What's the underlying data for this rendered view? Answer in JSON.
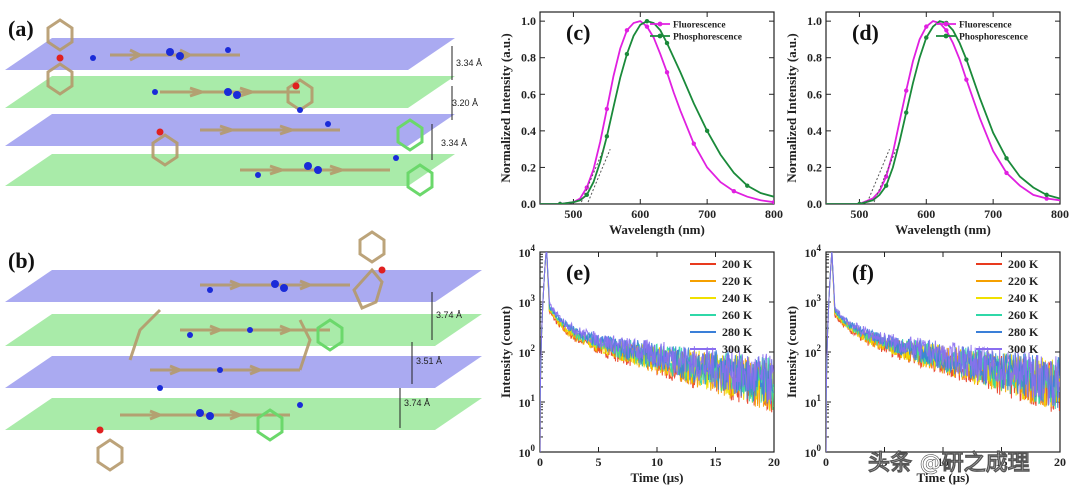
{
  "panels": {
    "a": {
      "label": "(a)",
      "distances": [
        "3.34 Å",
        "3.20 Å",
        "3.34 Å"
      ]
    },
    "b": {
      "label": "(b)",
      "distances": [
        "3.74 Å",
        "3.51 Å",
        "3.74 Å"
      ]
    }
  },
  "chart_data": [
    {
      "id": "c",
      "label": "(c)",
      "type": "line",
      "xlabel": "Wavelength (nm)",
      "ylabel": "Normalized Intensity (a.u.)",
      "xlim": [
        450,
        800
      ],
      "ylim": [
        0,
        1.05
      ],
      "xticks": [
        500,
        600,
        700,
        800
      ],
      "xticklabels": [
        "500",
        "600",
        "700",
        "800"
      ],
      "yticks": [
        0,
        0.2,
        0.4,
        0.6,
        0.8,
        1.0
      ],
      "yticklabels": [
        "0.0",
        "0.2",
        "0.4",
        "0.6",
        "0.8",
        "1.0"
      ],
      "series": [
        {
          "name": "Fluorescence",
          "color": "#e020e0",
          "x": [
            450,
            480,
            500,
            510,
            520,
            530,
            540,
            550,
            560,
            570,
            580,
            590,
            600,
            610,
            620,
            630,
            640,
            650,
            660,
            680,
            700,
            720,
            740,
            760,
            780,
            800
          ],
          "y": [
            0,
            0,
            0.01,
            0.03,
            0.09,
            0.19,
            0.34,
            0.52,
            0.7,
            0.85,
            0.95,
            0.99,
            1.0,
            0.97,
            0.91,
            0.82,
            0.72,
            0.61,
            0.51,
            0.33,
            0.2,
            0.12,
            0.07,
            0.04,
            0.02,
            0.01
          ]
        },
        {
          "name": "Phosphorescence",
          "color": "#1a8a3a",
          "x": [
            450,
            480,
            500,
            510,
            520,
            530,
            540,
            550,
            560,
            570,
            580,
            590,
            600,
            610,
            620,
            630,
            640,
            660,
            680,
            700,
            720,
            740,
            760,
            780,
            800
          ],
          "y": [
            0,
            0,
            0.01,
            0.02,
            0.05,
            0.12,
            0.23,
            0.37,
            0.53,
            0.69,
            0.82,
            0.92,
            0.98,
            1.0,
            0.99,
            0.95,
            0.88,
            0.72,
            0.55,
            0.4,
            0.27,
            0.17,
            0.1,
            0.06,
            0.04
          ]
        }
      ],
      "legend": [
        "Fluorescence",
        "Phosphorescence"
      ]
    },
    {
      "id": "d",
      "label": "(d)",
      "type": "line",
      "xlabel": "Wavelength (nm)",
      "ylabel": "Normalized Intensity (a.u.)",
      "xlim": [
        450,
        800
      ],
      "ylim": [
        0,
        1.05
      ],
      "xticks": [
        500,
        600,
        700,
        800
      ],
      "xticklabels": [
        "500",
        "600",
        "700",
        "800"
      ],
      "yticks": [
        0,
        0.2,
        0.4,
        0.6,
        0.8,
        1.0
      ],
      "yticklabels": [
        "0.0",
        "0.2",
        "0.4",
        "0.6",
        "0.8",
        "1.0"
      ],
      "series": [
        {
          "name": "Fluorescence",
          "color": "#e020e0",
          "x": [
            450,
            500,
            520,
            530,
            540,
            550,
            560,
            570,
            580,
            590,
            600,
            610,
            620,
            630,
            640,
            650,
            660,
            680,
            700,
            720,
            740,
            760,
            780,
            800
          ],
          "y": [
            0,
            0,
            0.03,
            0.07,
            0.15,
            0.28,
            0.45,
            0.62,
            0.78,
            0.9,
            0.97,
            1.0,
            0.99,
            0.95,
            0.88,
            0.79,
            0.68,
            0.47,
            0.29,
            0.17,
            0.1,
            0.05,
            0.03,
            0.02
          ]
        },
        {
          "name": "Phosphorescence",
          "color": "#1a8a3a",
          "x": [
            450,
            500,
            520,
            530,
            540,
            550,
            560,
            570,
            580,
            590,
            600,
            610,
            620,
            630,
            640,
            650,
            660,
            680,
            700,
            720,
            740,
            760,
            780,
            800
          ],
          "y": [
            0,
            0,
            0.02,
            0.05,
            0.1,
            0.2,
            0.34,
            0.5,
            0.66,
            0.8,
            0.91,
            0.97,
            1.0,
            0.99,
            0.95,
            0.88,
            0.79,
            0.58,
            0.39,
            0.25,
            0.15,
            0.09,
            0.05,
            0.03
          ]
        }
      ],
      "legend": [
        "Fluorescence",
        "Phosphorescence"
      ]
    },
    {
      "id": "e",
      "label": "(e)",
      "type": "line",
      "xlabel": "Time (μs)",
      "ylabel": "Intensity (count)",
      "xlim": [
        0,
        20
      ],
      "ylog": [
        0,
        4
      ],
      "xticks": [
        0,
        5,
        10,
        15,
        20
      ],
      "xticklabels": [
        "0",
        "5",
        "10",
        "15",
        "20"
      ],
      "yticks": [
        0,
        1,
        2,
        3,
        4
      ],
      "yticklabels": [
        {
          "base": "10",
          "exp": "0"
        },
        {
          "base": "10",
          "exp": "1"
        },
        {
          "base": "10",
          "exp": "2"
        },
        {
          "base": "10",
          "exp": "3"
        },
        {
          "base": "10",
          "exp": "4"
        }
      ],
      "decay": {
        "peak_time": 0.55,
        "peak_log": 4.1,
        "plateau_log": 3.0,
        "fast_amp": 0.62,
        "fast_tau": 1.6,
        "slow_rate": 0.058
      },
      "series": [
        {
          "name": "200 K",
          "color": "#e83a1e",
          "offset": -0.09
        },
        {
          "name": "220 K",
          "color": "#f5a000",
          "offset": -0.06
        },
        {
          "name": "240 K",
          "color": "#f0e000",
          "offset": -0.03
        },
        {
          "name": "260 K",
          "color": "#2fd8a8",
          "offset": 0.0
        },
        {
          "name": "280 K",
          "color": "#3a7fd8",
          "offset": 0.03
        },
        {
          "name": "300 K",
          "color": "#8a6ef0",
          "offset": 0.06
        }
      ]
    },
    {
      "id": "f",
      "label": "(f)",
      "type": "line",
      "xlabel": "Time (μs)",
      "ylabel": "Intensity (count)",
      "xlim": [
        0,
        20
      ],
      "ylog": [
        0,
        4
      ],
      "xticks": [
        0,
        5,
        10,
        15,
        20
      ],
      "xticklabels": [
        "0",
        "5",
        "10",
        "15",
        "20"
      ],
      "yticks": [
        0,
        1,
        2,
        3,
        4
      ],
      "yticklabels": [
        {
          "base": "10",
          "exp": "0"
        },
        {
          "base": "10",
          "exp": "1"
        },
        {
          "base": "10",
          "exp": "2"
        },
        {
          "base": "10",
          "exp": "3"
        },
        {
          "base": "10",
          "exp": "4"
        }
      ],
      "decay": {
        "peak_time": 0.5,
        "peak_log": 4.0,
        "plateau_log": 2.9,
        "fast_amp": 0.5,
        "fast_tau": 1.8,
        "slow_rate": 0.06
      },
      "series": [
        {
          "name": "200 K",
          "color": "#e83a1e",
          "offset": -0.08
        },
        {
          "name": "220 K",
          "color": "#f5a000",
          "offset": -0.05
        },
        {
          "name": "240 K",
          "color": "#f0e000",
          "offset": -0.03
        },
        {
          "name": "260 K",
          "color": "#2fd8a8",
          "offset": 0.0
        },
        {
          "name": "280 K",
          "color": "#3a7fd8",
          "offset": 0.02
        },
        {
          "name": "300 K",
          "color": "#8a6ef0",
          "offset": 0.05
        }
      ]
    }
  ],
  "watermark": "头条 @研之成理"
}
